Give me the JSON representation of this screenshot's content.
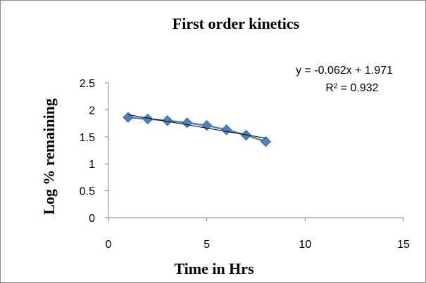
{
  "chart_data": {
    "type": "scatter",
    "title": "First order kinetics",
    "xlabel": "Time in Hrs",
    "ylabel": "Log % remaining",
    "xlim": [
      0,
      15
    ],
    "ylim": [
      0,
      2.5
    ],
    "x_ticks": [
      "0",
      "5",
      "10",
      "15"
    ],
    "y_ticks": [
      "0",
      "0.5",
      "1",
      "1.5",
      "2",
      "2.5"
    ],
    "x_tick_values": [
      0,
      5,
      10,
      15
    ],
    "y_tick_values": [
      0,
      0.5,
      1,
      1.5,
      2,
      2.5
    ],
    "grid": false,
    "legend": "none",
    "series": [
      {
        "x": [
          1,
          2,
          3,
          4,
          5,
          6,
          7,
          8
        ],
        "y": [
          1.86,
          1.83,
          1.8,
          1.76,
          1.71,
          1.63,
          1.53,
          1.41
        ],
        "color": "#4f81bd",
        "line_color": "#4f81bd",
        "marker": "diamond"
      }
    ],
    "trendline": {
      "type": "linear",
      "x_range": [
        1,
        8
      ],
      "slope": -0.062,
      "intercept": 1.971,
      "color": "#000000",
      "equation": "y = -0.062x + 1.971",
      "r_squared": "R² = 0.932"
    }
  }
}
